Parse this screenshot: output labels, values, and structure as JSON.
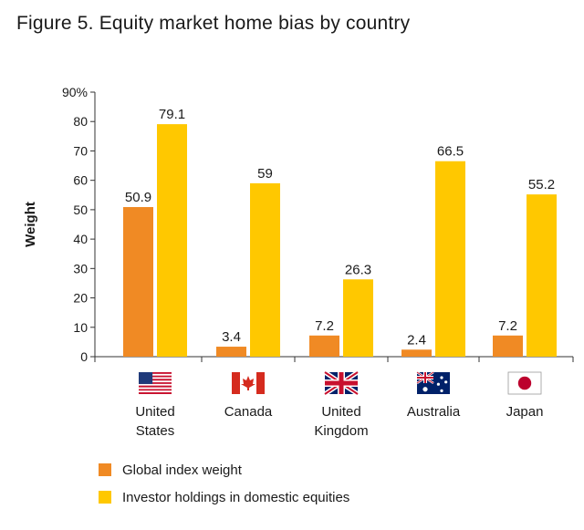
{
  "title": "Figure 5. Equity market home bias by country",
  "colors": {
    "series1": "#F08A24",
    "series2": "#FFC800"
  },
  "chart_data": {
    "type": "bar",
    "title": "Figure 5. Equity market home bias by country",
    "ylabel": "Weight",
    "xlabel": "",
    "ylim": [
      0,
      90
    ],
    "yticks": [
      "0",
      "10",
      "20",
      "30",
      "40",
      "50",
      "60",
      "70",
      "80",
      "90%"
    ],
    "categories": [
      {
        "lines": [
          "United",
          "States"
        ],
        "flag": "us-flag-icon"
      },
      {
        "lines": [
          "Canada"
        ],
        "flag": "canada-flag-icon"
      },
      {
        "lines": [
          "United",
          "Kingdom"
        ],
        "flag": "uk-flag-icon"
      },
      {
        "lines": [
          "Australia"
        ],
        "flag": "australia-flag-icon"
      },
      {
        "lines": [
          "Japan"
        ],
        "flag": "japan-flag-icon"
      }
    ],
    "series": [
      {
        "name": "Global index weight",
        "values": [
          50.9,
          3.4,
          7.2,
          2.4,
          7.2
        ],
        "labels": [
          "50.9",
          "3.4",
          "7.2",
          "2.4",
          "7.2"
        ]
      },
      {
        "name": "Investor holdings in domestic equities",
        "values": [
          79.1,
          59,
          26.3,
          66.5,
          55.2
        ],
        "labels": [
          "79.1",
          "59",
          "26.3",
          "66.5",
          "55.2"
        ]
      }
    ],
    "grid": false,
    "legend": "bottom-left"
  }
}
